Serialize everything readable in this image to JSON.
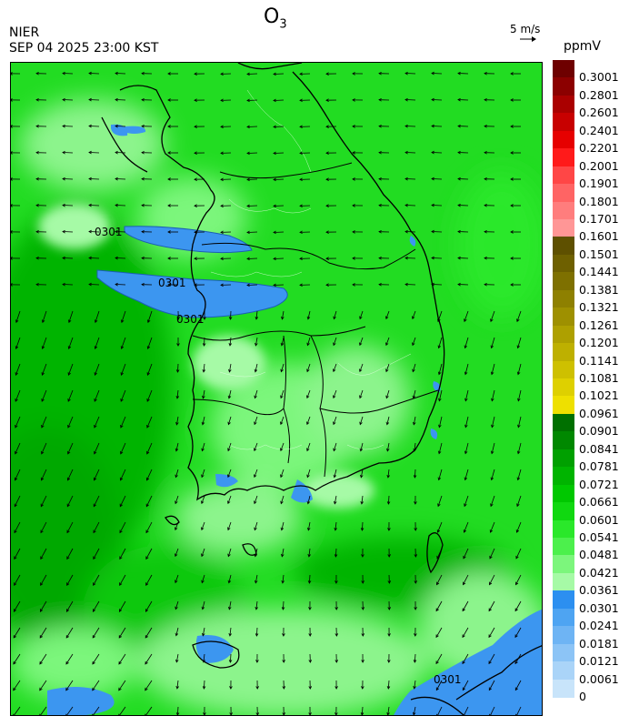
{
  "header": {
    "source": "NIER",
    "timestamp": "SEP 04 2025 23:00 KST",
    "title_main": "O",
    "title_sub": "3",
    "wind_ref_label": "5 m/s",
    "unit": "ppmV"
  },
  "contour_labels": [
    "0301",
    "0301",
    "0301",
    "0301"
  ],
  "colorbar": {
    "labels": [
      "0.3001",
      "0.2801",
      "0.2601",
      "0.2401",
      "0.2201",
      "0.2001",
      "0.1901",
      "0.1801",
      "0.1701",
      "0.1601",
      "0.1501",
      "0.1441",
      "0.1381",
      "0.1321",
      "0.1261",
      "0.1201",
      "0.1141",
      "0.1081",
      "0.1021",
      "0.0961",
      "0.0901",
      "0.0841",
      "0.0781",
      "0.0721",
      "0.0661",
      "0.0601",
      "0.0541",
      "0.0481",
      "0.0421",
      "0.0361",
      "0.0301",
      "0.0241",
      "0.0181",
      "0.0121",
      "0.0061",
      "0"
    ],
    "colors": [
      "#6e0000",
      "#8c0000",
      "#aa0000",
      "#c80000",
      "#e60000",
      "#ff1a1a",
      "#ff4646",
      "#ff6464",
      "#ff7d7d",
      "#ff9696",
      "#5e5000",
      "#6e6000",
      "#7e7000",
      "#8e8000",
      "#9e9000",
      "#aea000",
      "#beb000",
      "#cec000",
      "#ded000",
      "#eee000",
      "#007000",
      "#008800",
      "#00a000",
      "#00b400",
      "#00c800",
      "#10d810",
      "#2ae82a",
      "#4cf04c",
      "#7cf67c",
      "#a6faa6",
      "#2c8ff0",
      "#4ea4f2",
      "#6eb4f4",
      "#8cc4f6",
      "#aad4f8",
      "#c8e4fa"
    ]
  },
  "legend": {
    "green_band": "0.0301–0.0901",
    "blue_band": "0–0.0301",
    "olive_band": "0.0901–0.1501",
    "red_band": "0.1501–0.3001+"
  }
}
